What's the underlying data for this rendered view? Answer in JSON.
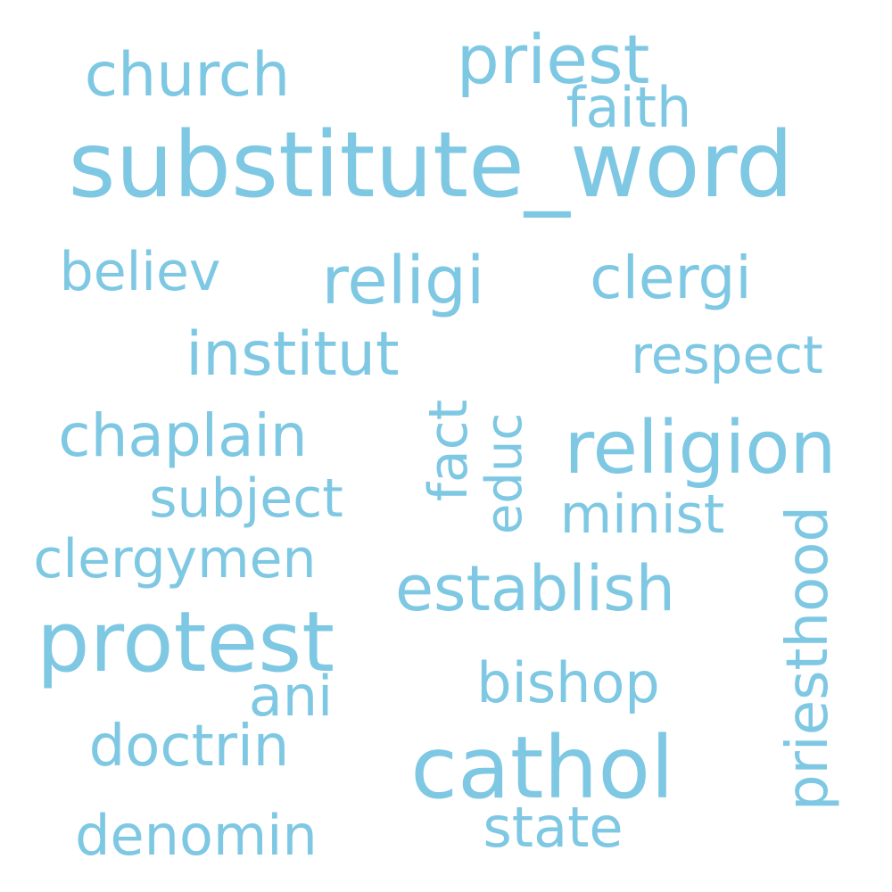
{
  "word_color": "#7ec8e3",
  "background": "#ffffff",
  "words": [
    {
      "text": "substitute_word"
    },
    {
      "text": "priest"
    },
    {
      "text": "church"
    },
    {
      "text": "faith"
    },
    {
      "text": "believ"
    },
    {
      "text": "religi"
    },
    {
      "text": "clergi"
    },
    {
      "text": "institut"
    },
    {
      "text": "respect"
    },
    {
      "text": "chaplain"
    },
    {
      "text": "fact"
    },
    {
      "text": "educ"
    },
    {
      "text": "religion"
    },
    {
      "text": "subject"
    },
    {
      "text": "minist"
    },
    {
      "text": "clergymen"
    },
    {
      "text": "establish"
    },
    {
      "text": "priesthood"
    },
    {
      "text": "protest"
    },
    {
      "text": "bishop"
    },
    {
      "text": "ani"
    },
    {
      "text": "doctrin"
    },
    {
      "text": "cathol"
    },
    {
      "text": "denomin"
    },
    {
      "text": "state"
    }
  ]
}
